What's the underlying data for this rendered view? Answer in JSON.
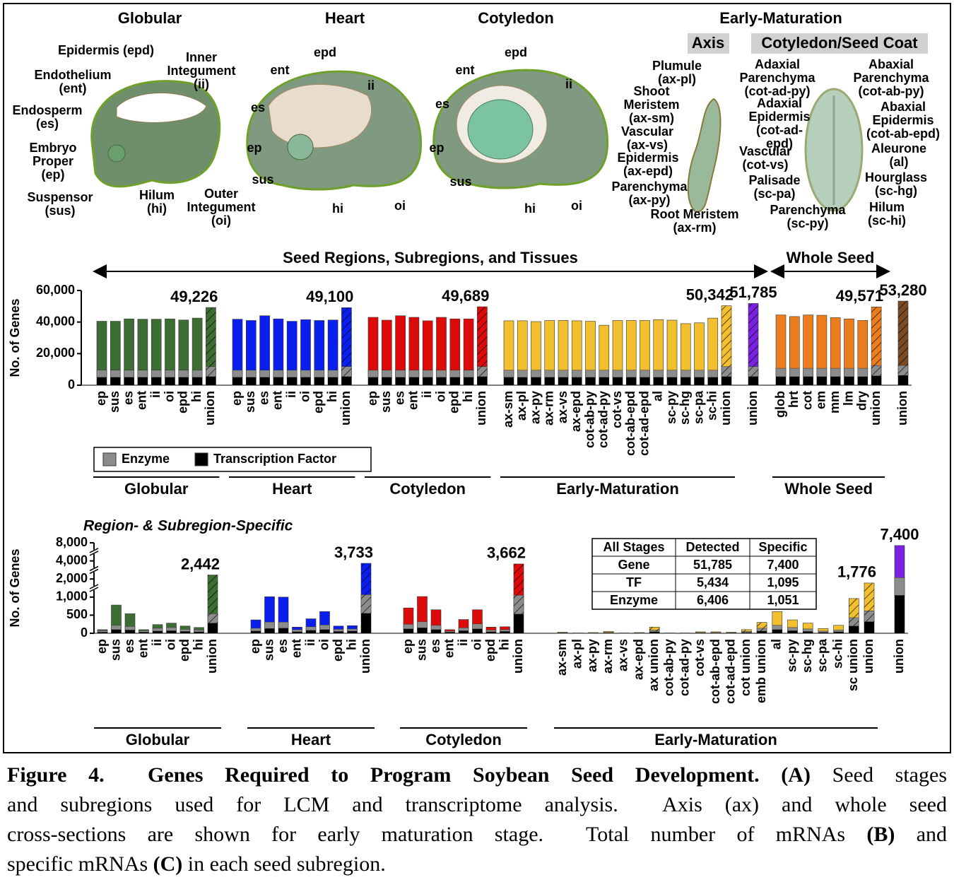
{
  "panel_a": {
    "stages": [
      {
        "title": "Globular",
        "labels": [
          [
            "Epidermis (epd)"
          ],
          [
            "Inner",
            "Integument",
            "(ii)"
          ],
          [
            "Endothelium",
            "(ent)"
          ],
          [
            "Endosperm",
            "(es)"
          ],
          [
            "Embryo",
            "Proper",
            "(ep)"
          ],
          [
            "Suspensor",
            "(sus)"
          ],
          [
            "Hilum",
            "(hi)"
          ],
          [
            "Outer",
            "Integument",
            "(oi)"
          ]
        ]
      },
      {
        "title": "Heart",
        "labels": [
          [
            "epd"
          ],
          [
            "ent"
          ],
          [
            "ii"
          ],
          [
            "es"
          ],
          [
            "ep"
          ],
          [
            "sus"
          ],
          [
            "hi"
          ],
          [
            "oi"
          ]
        ]
      },
      {
        "title": "Cotyledon",
        "labels": [
          [
            "epd"
          ],
          [
            "ent"
          ],
          [
            "ii"
          ],
          [
            "es"
          ],
          [
            "ep"
          ],
          [
            "sus"
          ],
          [
            "hi"
          ],
          [
            "oi"
          ]
        ]
      },
      {
        "title": "Early-Maturation",
        "sections": [
          {
            "title": "Axis",
            "labels": [
              [
                "Plumule",
                "(ax-pl)"
              ],
              [
                "Shoot",
                "Meristem",
                "(ax-sm)"
              ],
              [
                "Vascular",
                "(ax-vs)"
              ],
              [
                "Epidermis",
                "(ax-epd)"
              ],
              [
                "Parenchyma",
                "(ax-py)"
              ],
              [
                "Root Meristem",
                "(ax-rm)"
              ]
            ]
          },
          {
            "title": "Cotyledon/Seed Coat",
            "labels": [
              [
                "Adaxial",
                "Parenchyma",
                "(cot-ad-py)"
              ],
              [
                "Abaxial",
                "Parenchyma",
                "(cot-ab-py)"
              ],
              [
                "Adaxial",
                "Epidermis",
                "(cot-ad-",
                "epd)"
              ],
              [
                "Abaxial",
                "Epidermis",
                "(cot-ab-epd)"
              ],
              [
                "Vascular",
                "(cot-vs)"
              ],
              [
                "Aleurone",
                "(al)"
              ],
              [
                "Palisade",
                "(sc-pa)"
              ],
              [
                "Hourglass",
                "(sc-hg)"
              ],
              [
                "Parenchyma",
                "(sc-py)"
              ],
              [
                "Hilum",
                "(sc-hi)"
              ]
            ]
          }
        ]
      }
    ]
  },
  "chart_data": [
    {
      "type": "bar",
      "ylabel": "No. of Genes",
      "ylim": [
        0,
        60000
      ],
      "yticks": [
        0,
        {
          "value": 20000,
          "label": "20,000"
        },
        {
          "value": 40000,
          "label": "40,000"
        },
        {
          "value": 60000,
          "label": "60,000"
        }
      ],
      "headers": [
        "Seed Regions, Subregions, and Tissues",
        "Whole Seed"
      ],
      "legend": [
        {
          "name": "Enzyme",
          "color": "#8c8c8c"
        },
        {
          "name": "Transcription Factor",
          "color": "#000000"
        }
      ],
      "groups": [
        {
          "name": "Globular",
          "color": "#3c6e34",
          "categories": [
            "ep",
            "sus",
            "es",
            "ent",
            "ii",
            "oi",
            "epd",
            "hi",
            "union"
          ],
          "values": [
            40500,
            40500,
            42000,
            41800,
            41800,
            42000,
            41300,
            42500,
            49226
          ],
          "value_labels": [
            null,
            null,
            null,
            null,
            null,
            null,
            null,
            null,
            "49,226"
          ],
          "tf": [
            5000,
            5000,
            5000,
            5000,
            5000,
            5000,
            5000,
            5000,
            5400
          ],
          "enzyme": [
            4500,
            4500,
            4500,
            4500,
            4500,
            4500,
            4500,
            4500,
            6400
          ],
          "hatched": [
            8
          ]
        },
        {
          "name": "Heart",
          "color": "#0a1ef0",
          "categories": [
            "ep",
            "sus",
            "es",
            "ent",
            "ii",
            "oi",
            "epd",
            "hi",
            "union"
          ],
          "values": [
            41800,
            41000,
            44000,
            42000,
            40500,
            41500,
            41000,
            41300,
            49100
          ],
          "value_labels": [
            null,
            null,
            null,
            null,
            null,
            null,
            null,
            null,
            "49,100"
          ],
          "tf": [
            5000,
            5000,
            5000,
            5000,
            5000,
            5000,
            5000,
            5000,
            5400
          ],
          "enzyme": [
            4500,
            4500,
            4500,
            4500,
            4500,
            4500,
            4500,
            4500,
            6400
          ],
          "hatched": [
            8
          ]
        },
        {
          "name": "Cotyledon",
          "color": "#dd0a0a",
          "categories": [
            "ep",
            "sus",
            "es",
            "ent",
            "ii",
            "oi",
            "epd",
            "hi",
            "union"
          ],
          "values": [
            43000,
            41200,
            44000,
            43000,
            40800,
            43000,
            42000,
            42000,
            49689
          ],
          "value_labels": [
            null,
            null,
            null,
            null,
            null,
            null,
            null,
            null,
            "49,689"
          ],
          "tf": [
            5000,
            5000,
            5000,
            5000,
            5000,
            5000,
            5000,
            5000,
            5400
          ],
          "enzyme": [
            4500,
            4500,
            4500,
            4500,
            4500,
            4500,
            4500,
            4500,
            6400
          ],
          "hatched": [
            8
          ]
        },
        {
          "name": "Early-Maturation",
          "color": "#f2bf2e",
          "categories": [
            "ax-sm",
            "ax-pl",
            "ax-py",
            "ax-rm",
            "ax-vs",
            "ax-epd",
            "cot-ab-py",
            "cot-ad-py",
            "cot-vs",
            "cot-ab-epd",
            "cot-ad-epd",
            "al",
            "sc-py",
            "sc-hg",
            "sc-pa",
            "sc-hi",
            "union"
          ],
          "values": [
            40800,
            40800,
            40300,
            41000,
            41000,
            40800,
            40500,
            38000,
            41000,
            41000,
            41000,
            41500,
            41200,
            39000,
            39500,
            42500,
            50342
          ],
          "value_labels": [
            null,
            null,
            null,
            null,
            null,
            null,
            null,
            null,
            null,
            null,
            null,
            null,
            null,
            null,
            null,
            null,
            "50,342"
          ],
          "tf": [
            5000,
            5000,
            5000,
            5000,
            5000,
            5000,
            5000,
            5000,
            5000,
            5000,
            5000,
            5000,
            5000,
            5000,
            5000,
            5000,
            5400
          ],
          "enzyme": [
            4500,
            4500,
            4500,
            4500,
            4500,
            4500,
            4500,
            4500,
            4500,
            4500,
            4500,
            4500,
            4500,
            4500,
            4500,
            4500,
            6400
          ],
          "hatched": [
            16
          ]
        },
        {
          "color": "#7b22e0",
          "categories": [
            "union"
          ],
          "values": [
            51785
          ],
          "value_labels": [
            "51,785"
          ],
          "tf": [
            5434
          ],
          "enzyme": [
            6406
          ],
          "hatched": [
            0
          ]
        },
        {
          "name": "Whole Seed",
          "color": "#ec7d1c",
          "categories": [
            "glob",
            "hrt",
            "cot",
            "em",
            "mm",
            "lm",
            "dry",
            "union"
          ],
          "values": [
            44500,
            43500,
            44500,
            44300,
            42800,
            42000,
            41000,
            49571
          ],
          "value_labels": [
            null,
            null,
            null,
            null,
            null,
            null,
            null,
            "49,571"
          ],
          "tf": [
            5400,
            5400,
            5400,
            5400,
            5400,
            5400,
            5400,
            5900
          ],
          "enzyme": [
            5300,
            5300,
            5300,
            5300,
            5300,
            5300,
            5300,
            6600
          ],
          "hatched": [
            7
          ]
        },
        {
          "color": "#7b4a22",
          "categories": [
            "union"
          ],
          "values": [
            53280
          ],
          "value_labels": [
            "53,280"
          ],
          "tf": [
            6200
          ],
          "enzyme": [
            6300
          ],
          "hatched": [
            0
          ]
        }
      ]
    },
    {
      "type": "bar",
      "title": "Region- & Subregion-Specific",
      "ylabel": "No. of Genes",
      "ylim": [
        0,
        8000
      ],
      "scale": "broken",
      "yticks": [
        0,
        500,
        {
          "value": 1000,
          "label": "1,000"
        },
        {
          "value": 2000,
          "label": "2,000"
        },
        {
          "value": 4000,
          "label": "4,000"
        },
        {
          "value": 8000,
          "label": "8,000"
        }
      ],
      "table": {
        "header": [
          "All Stages",
          "Detected",
          "Specific"
        ],
        "rows": [
          [
            "Gene",
            "51,785",
            "7,400"
          ],
          [
            "TF",
            "5,434",
            "1,095"
          ],
          [
            "Enzyme",
            "6,406",
            "1,051"
          ]
        ]
      },
      "groups": [
        {
          "name": "Globular",
          "color": "#3c6e34",
          "categories": [
            "ep",
            "sus",
            "es",
            "ent",
            "ii",
            "oi",
            "epd",
            "hi",
            "union"
          ],
          "values": [
            100,
            780,
            540,
            100,
            240,
            280,
            200,
            160,
            2442
          ],
          "value_labels": [
            null,
            null,
            null,
            null,
            null,
            null,
            null,
            null,
            "2,442"
          ],
          "tf": [
            30,
            100,
            90,
            30,
            60,
            70,
            50,
            40,
            280
          ],
          "enzyme": [
            40,
            120,
            100,
            40,
            80,
            90,
            60,
            50,
            260
          ],
          "hatched": [
            8
          ]
        },
        {
          "name": "Heart",
          "color": "#0a1ef0",
          "categories": [
            "ep",
            "sus",
            "es",
            "ent",
            "ii",
            "oi",
            "epd",
            "hi",
            "union"
          ],
          "values": [
            370,
            1020,
            1000,
            170,
            400,
            600,
            200,
            210,
            3733
          ],
          "value_labels": [
            null,
            null,
            null,
            null,
            null,
            null,
            null,
            null,
            "3,733"
          ],
          "tf": [
            60,
            130,
            140,
            40,
            80,
            100,
            50,
            60,
            550
          ],
          "enzyme": [
            80,
            180,
            170,
            60,
            100,
            130,
            60,
            60,
            580
          ],
          "hatched": [
            8
          ]
        },
        {
          "name": "Cotyledon",
          "color": "#dd0a0a",
          "categories": [
            "ep",
            "sus",
            "es",
            "ent",
            "ii",
            "oi",
            "epd",
            "hi",
            "union"
          ],
          "values": [
            700,
            1030,
            650,
            100,
            380,
            650,
            170,
            180,
            3662
          ],
          "value_labels": [
            null,
            null,
            null,
            null,
            null,
            null,
            null,
            null,
            "3,662"
          ],
          "tf": [
            120,
            150,
            100,
            30,
            70,
            120,
            40,
            50,
            530
          ],
          "enzyme": [
            130,
            170,
            120,
            30,
            80,
            140,
            50,
            50,
            570
          ],
          "hatched": [
            8
          ]
        },
        {
          "name": "Early-Maturation",
          "color": "#f2bf2e",
          "categories": [
            "ax-sm",
            "ax-pl",
            "ax-py",
            "ax-rm",
            "ax-vs",
            "ax-epd",
            "ax union",
            "cot-ab-py",
            "cot-ad-py",
            "cot-vs",
            "cot-ab-epd",
            "cot-ad-epd",
            "cot union",
            "emb union",
            "al",
            "sc-py",
            "sc-hg",
            "sc-pa",
            "sc-hi",
            "sc union",
            "union"
          ],
          "values": [
            30,
            10,
            20,
            50,
            10,
            20,
            170,
            10,
            10,
            40,
            40,
            30,
            100,
            300,
            600,
            370,
            280,
            130,
            220,
            960,
            1776
          ],
          "value_labels": [
            null,
            null,
            null,
            null,
            null,
            null,
            null,
            null,
            null,
            null,
            null,
            null,
            null,
            null,
            null,
            null,
            null,
            null,
            null,
            null,
            "1,776"
          ],
          "tf": [
            5,
            2,
            3,
            10,
            2,
            4,
            40,
            2,
            2,
            8,
            8,
            6,
            20,
            60,
            100,
            70,
            50,
            25,
            40,
            200,
            320
          ],
          "enzyme": [
            10,
            3,
            5,
            15,
            3,
            6,
            50,
            3,
            3,
            12,
            12,
            10,
            30,
            80,
            120,
            90,
            70,
            35,
            50,
            230,
            300
          ],
          "hatched": [
            6,
            12,
            13,
            19,
            20
          ]
        },
        {
          "color": "#7b22e0",
          "categories": [
            "union"
          ],
          "values": [
            7400
          ],
          "value_labels": [
            "7,400"
          ],
          "tf": [
            1095
          ],
          "enzyme": [
            1051
          ],
          "hatched": []
        }
      ]
    }
  ],
  "caption": [
    [
      {
        "text": "Figure 4.  Genes Required to Program Soybean Seed Development.",
        "bold": true
      },
      {
        "text": "(A)",
        "bold": true
      },
      {
        "text": "Seed stages"
      }
    ],
    [
      {
        "text": "and subregions used for LCM and transcriptome analysis.  Axis (ax) and whole seed"
      }
    ],
    [
      {
        "text": "cross-sections are shown for early maturation stage.  Total number of mRNAs"
      },
      {
        "text": "(B)",
        "bold": true
      },
      {
        "text": "and"
      }
    ],
    [
      {
        "text": "specific mRNAs"
      },
      {
        "text": "(C)",
        "bold": true
      },
      {
        "text": "in each seed subregion."
      }
    ]
  ]
}
